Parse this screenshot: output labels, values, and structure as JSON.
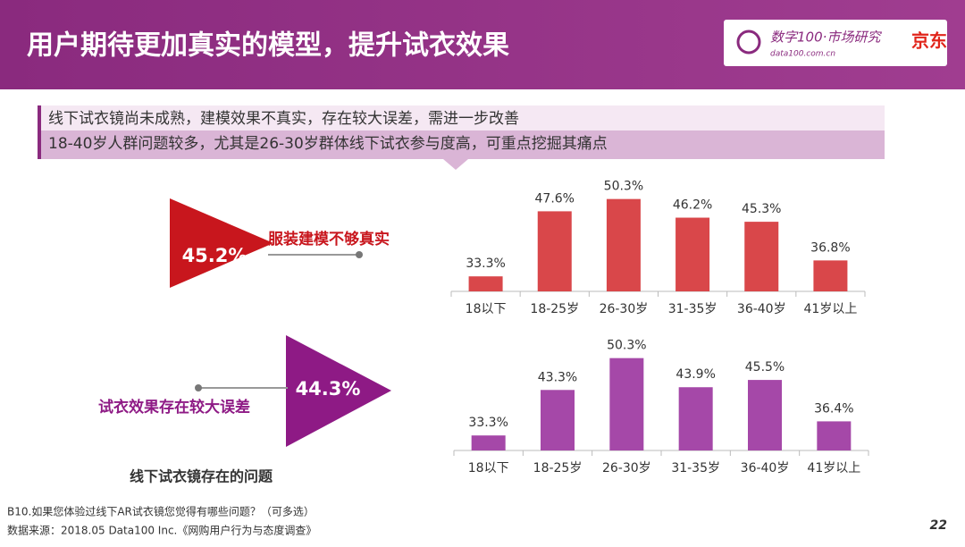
{
  "header": {
    "title": "用户期待更加真实的模型，提升试衣效果",
    "logo_text": "数字100·市场研究",
    "logo_sub": "data100.com.cn",
    "brand": "京东"
  },
  "callout": {
    "lines": [
      "线下试衣镜尚未成熟，建模效果不真实，存在较大误差，需进一步改善",
      "18-40岁人群问题较多，尤其是26-30岁群体线下试衣参与度高，可重点挖掘其痛点"
    ]
  },
  "issues": [
    {
      "value": "45.2%",
      "label": "服装建模不够真实"
    },
    {
      "value": "44.3%",
      "label": "试衣效果存在较大误差"
    }
  ],
  "caption": "线下试衣镜存在的问题",
  "footer": {
    "question": "B10.如果您体验过线下AR试衣镜您觉得有哪些问题？（可多选）",
    "source": "数据来源：2018.05 Data100 Inc.《网购用户行为与态度调查》",
    "page": "22"
  },
  "chart_data": [
    {
      "type": "bar",
      "categories": [
        "18以下",
        "18-25岁",
        "26-30岁",
        "31-35岁",
        "36-40岁",
        "41岁以上"
      ],
      "values": [
        33.3,
        47.6,
        50.3,
        46.2,
        45.3,
        36.8
      ],
      "value_labels": [
        "33.3%",
        "47.6%",
        "50.3%",
        "46.2%",
        "45.3%",
        "36.8%"
      ],
      "color": "#d9474a",
      "ylim": [
        30,
        52
      ]
    },
    {
      "type": "bar",
      "categories": [
        "18以下",
        "18-25岁",
        "26-30岁",
        "31-35岁",
        "36-40岁",
        "41岁以上"
      ],
      "values": [
        33.3,
        43.3,
        50.3,
        43.9,
        45.5,
        36.4
      ],
      "value_labels": [
        "33.3%",
        "43.3%",
        "50.3%",
        "43.9%",
        "45.5%",
        "36.4%"
      ],
      "color": "#a548a8",
      "ylim": [
        30,
        52
      ]
    }
  ]
}
